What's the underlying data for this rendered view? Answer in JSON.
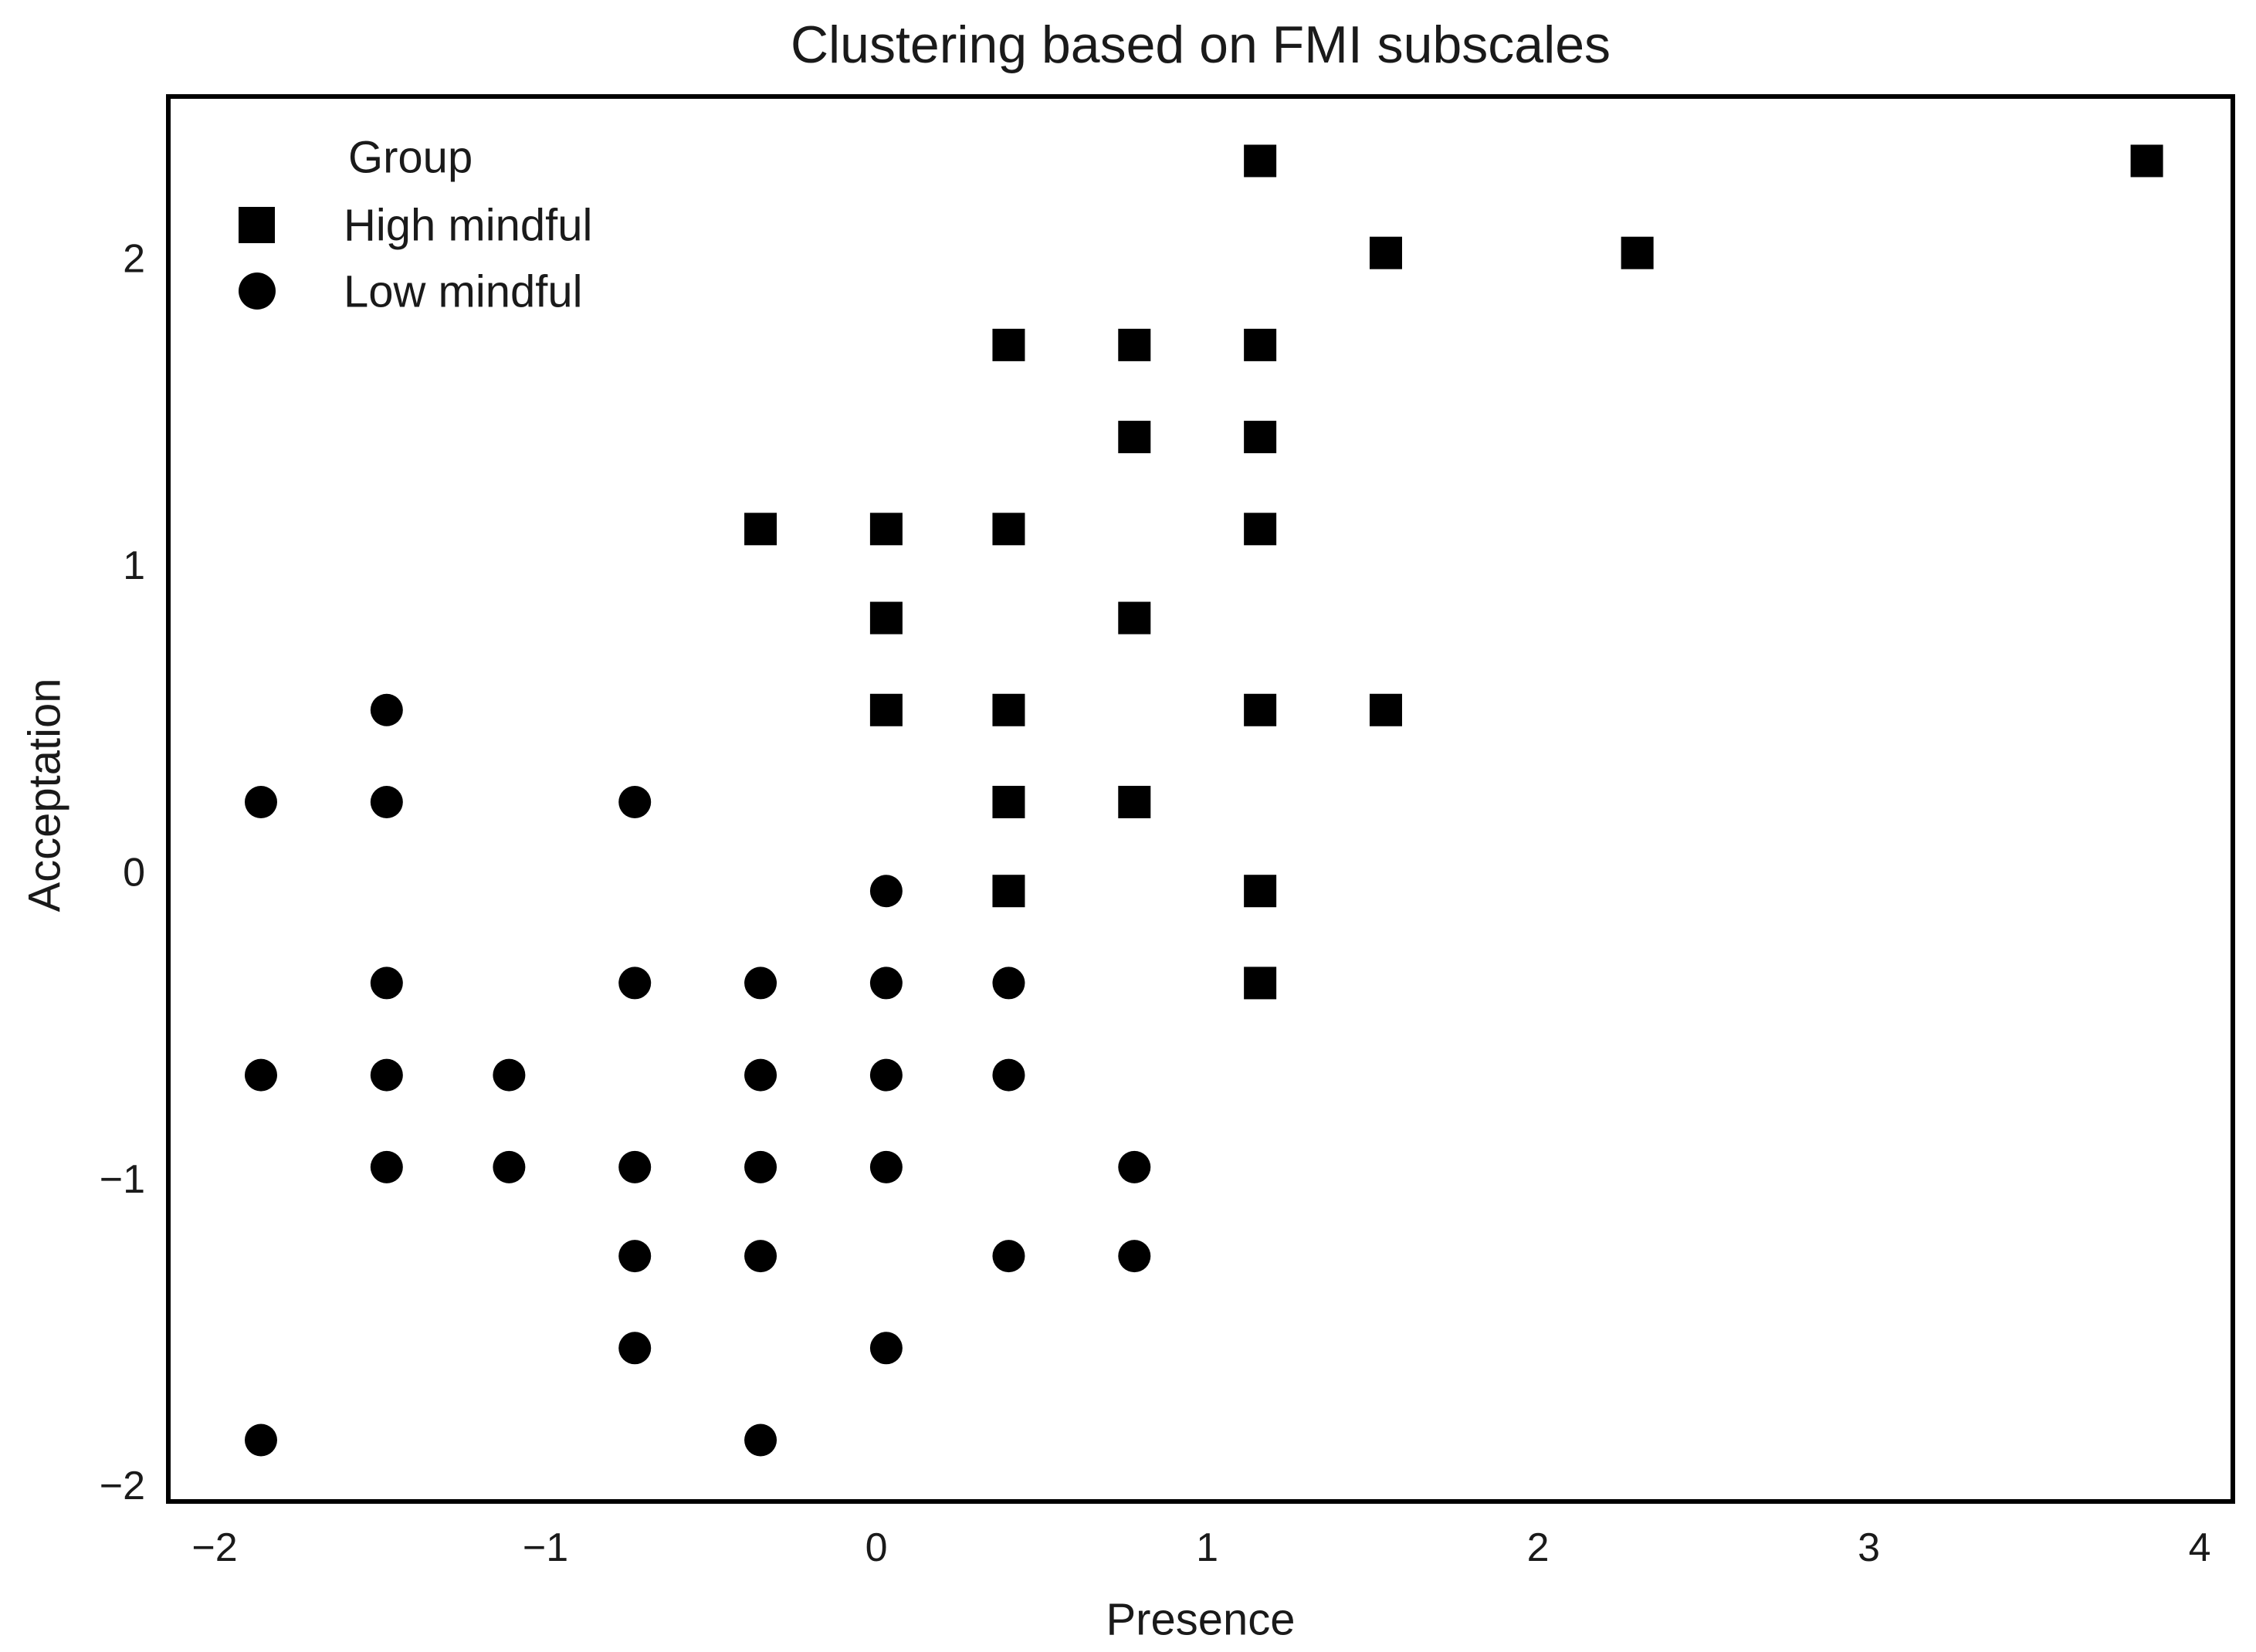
{
  "title": "Clustering based on FMI subscales",
  "chart_data": {
    "type": "scatter",
    "title": "Clustering based on FMI subscales",
    "xlabel": "Presence",
    "ylabel": "Acceptation",
    "xlim": [
      -2.14,
      4.1
    ],
    "ylim": [
      -2.05,
      2.53
    ],
    "xticks": [
      -2,
      -1,
      0,
      1,
      2,
      3,
      4
    ],
    "yticks": [
      -2,
      -1,
      0,
      1,
      2
    ],
    "grid": false,
    "marker_color": "#000000",
    "legend": {
      "title": "Group",
      "position": "upper left",
      "entries": [
        {
          "label": "High mindful",
          "marker": "square"
        },
        {
          "label": "Low mindful",
          "marker": "circle"
        }
      ]
    },
    "series": [
      {
        "name": "High mindful",
        "marker": "square",
        "color": "#000000",
        "points": [
          [
            1.16,
            2.32
          ],
          [
            3.84,
            2.32
          ],
          [
            1.54,
            2.02
          ],
          [
            2.3,
            2.02
          ],
          [
            0.4,
            1.72
          ],
          [
            0.78,
            1.72
          ],
          [
            1.16,
            1.72
          ],
          [
            0.78,
            1.42
          ],
          [
            1.16,
            1.42
          ],
          [
            -0.35,
            1.12
          ],
          [
            0.03,
            1.12
          ],
          [
            0.4,
            1.12
          ],
          [
            1.16,
            1.12
          ],
          [
            0.03,
            0.83
          ],
          [
            0.78,
            0.83
          ],
          [
            0.03,
            0.53
          ],
          [
            0.4,
            0.53
          ],
          [
            1.16,
            0.53
          ],
          [
            1.54,
            0.53
          ],
          [
            0.4,
            0.23
          ],
          [
            0.78,
            0.23
          ],
          [
            0.4,
            -0.06
          ],
          [
            1.16,
            -0.06
          ],
          [
            1.16,
            -0.36
          ]
        ]
      },
      {
        "name": "Low mindful",
        "marker": "circle",
        "color": "#000000",
        "points": [
          [
            -1.48,
            0.53
          ],
          [
            -1.86,
            0.23
          ],
          [
            -1.48,
            0.23
          ],
          [
            -0.73,
            0.23
          ],
          [
            0.03,
            -0.06
          ],
          [
            -1.48,
            -0.36
          ],
          [
            -0.73,
            -0.36
          ],
          [
            -0.35,
            -0.36
          ],
          [
            0.03,
            -0.36
          ],
          [
            0.4,
            -0.36
          ],
          [
            -1.86,
            -0.66
          ],
          [
            -1.48,
            -0.66
          ],
          [
            -1.11,
            -0.66
          ],
          [
            -0.35,
            -0.66
          ],
          [
            0.03,
            -0.66
          ],
          [
            0.4,
            -0.66
          ],
          [
            -1.48,
            -0.96
          ],
          [
            -1.11,
            -0.96
          ],
          [
            -0.73,
            -0.96
          ],
          [
            -0.35,
            -0.96
          ],
          [
            0.03,
            -0.96
          ],
          [
            0.78,
            -0.96
          ],
          [
            -0.73,
            -1.25
          ],
          [
            -0.35,
            -1.25
          ],
          [
            0.4,
            -1.25
          ],
          [
            0.78,
            -1.25
          ],
          [
            -0.73,
            -1.55
          ],
          [
            0.03,
            -1.55
          ],
          [
            -1.86,
            -1.85
          ],
          [
            -0.35,
            -1.85
          ]
        ]
      }
    ]
  },
  "colors": {
    "background": "#ffffff",
    "text": "#1a1a1a",
    "spine": "#000000",
    "marker": "#000000"
  }
}
